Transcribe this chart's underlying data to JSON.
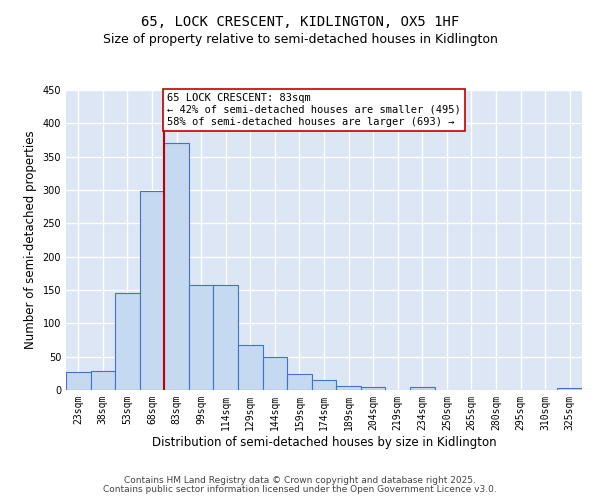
{
  "title_line1": "65, LOCK CRESCENT, KIDLINGTON, OX5 1HF",
  "title_line2": "Size of property relative to semi-detached houses in Kidlington",
  "xlabel": "Distribution of semi-detached houses by size in Kidlington",
  "ylabel": "Number of semi-detached properties",
  "categories": [
    "23sqm",
    "38sqm",
    "53sqm",
    "68sqm",
    "83sqm",
    "99sqm",
    "114sqm",
    "129sqm",
    "144sqm",
    "159sqm",
    "174sqm",
    "189sqm",
    "204sqm",
    "219sqm",
    "234sqm",
    "250sqm",
    "265sqm",
    "280sqm",
    "295sqm",
    "310sqm",
    "325sqm"
  ],
  "values": [
    27,
    28,
    145,
    298,
    370,
    158,
    158,
    68,
    49,
    24,
    15,
    6,
    5,
    0,
    4,
    0,
    0,
    0,
    0,
    0,
    3
  ],
  "bar_color": "#c5d9f0",
  "bar_edge_color": "#4472c4",
  "vline_index": 4,
  "vline_color": "#c00000",
  "annotation_box_text": "65 LOCK CRESCENT: 83sqm\n← 42% of semi-detached houses are smaller (495)\n58% of semi-detached houses are larger (693) →",
  "annotation_box_color": "#c00000",
  "annotation_box_bg": "#ffffff",
  "ylim": [
    0,
    450
  ],
  "yticks": [
    0,
    50,
    100,
    150,
    200,
    250,
    300,
    350,
    400,
    450
  ],
  "background_color": "#dce6f5",
  "footer_line1": "Contains HM Land Registry data © Crown copyright and database right 2025.",
  "footer_line2": "Contains public sector information licensed under the Open Government Licence v3.0.",
  "grid_color": "#ffffff",
  "title_fontsize": 10,
  "subtitle_fontsize": 9,
  "axis_label_fontsize": 8.5,
  "tick_fontsize": 7,
  "annotation_fontsize": 7.5,
  "footer_fontsize": 6.5
}
